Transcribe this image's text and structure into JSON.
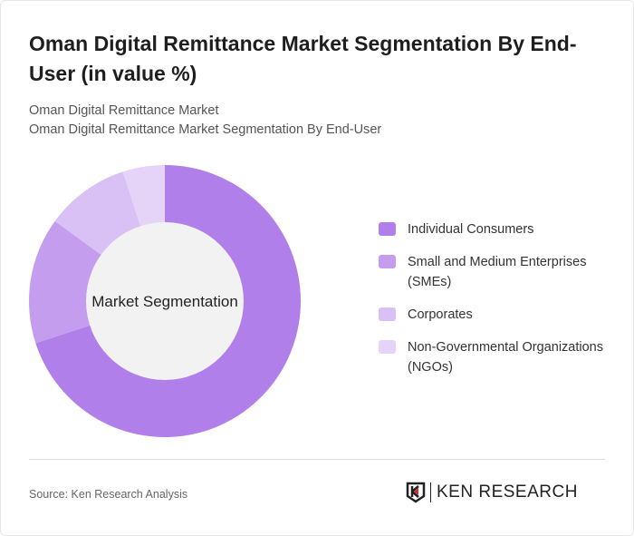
{
  "title": "Oman Digital Remittance Market Segmentation By End-User (in value %)",
  "subtitle1": "Oman Digital Remittance Market",
  "subtitle2": "Oman Digital Remittance Market Segmentation By End-User",
  "source": "Source: Ken Research Analysis",
  "logo_text": "KEN RESEARCH",
  "chart_data": {
    "type": "pie",
    "donut": true,
    "center_label": "Market Segmentation",
    "categories": [
      "Individual Consumers",
      "Small and Medium Enterprises (SMEs)",
      "Corporates",
      "Non-Governmental Organizations (NGOs)"
    ],
    "values": [
      70,
      15,
      10,
      5
    ],
    "colors": [
      "#b07fe9",
      "#c49dee",
      "#d9c1f5",
      "#e5d3f8"
    ],
    "legend_position": "right"
  }
}
